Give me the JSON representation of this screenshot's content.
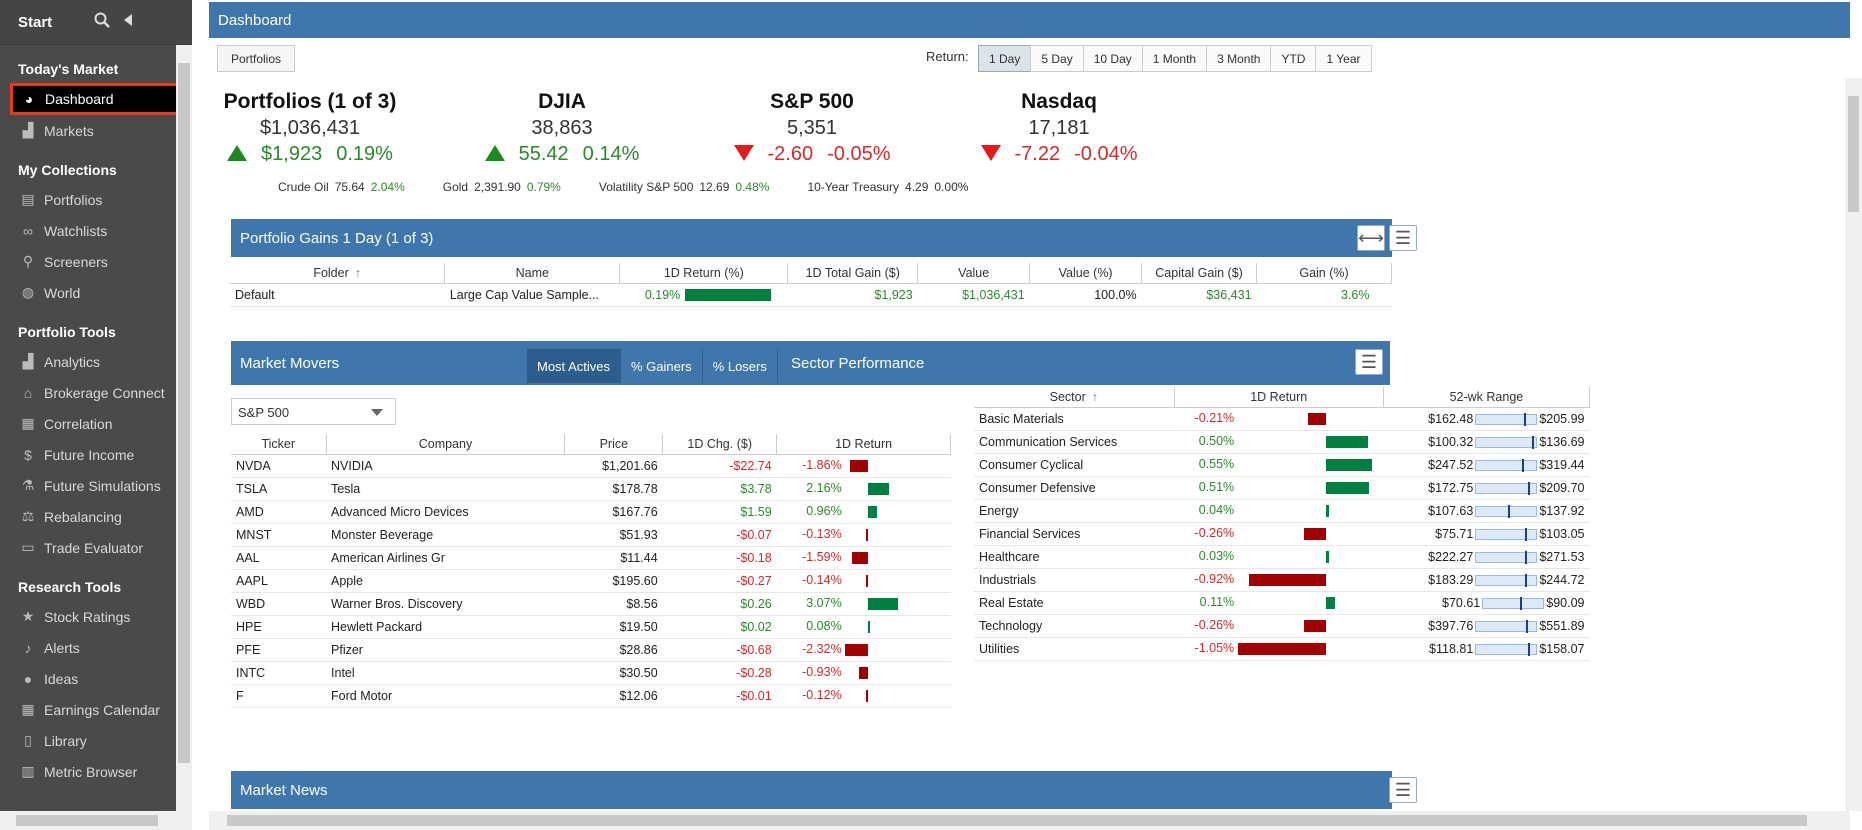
{
  "sidebar": {
    "title": "Start",
    "sections": [
      {
        "title": "Today's Market",
        "items": [
          {
            "label": "Dashboard",
            "icon": "dashboard-icon",
            "glyph": "◕",
            "active": true
          },
          {
            "label": "Markets",
            "icon": "chart-icon",
            "glyph": "▟",
            "active": false
          }
        ]
      },
      {
        "title": "My Collections",
        "items": [
          {
            "label": "Portfolios",
            "icon": "briefcase-icon",
            "glyph": "▤",
            "active": false
          },
          {
            "label": "Watchlists",
            "icon": "binoculars-icon",
            "glyph": "∞",
            "active": false
          },
          {
            "label": "Screeners",
            "icon": "search-icon",
            "glyph": "⚲",
            "active": false
          },
          {
            "label": "World",
            "icon": "globe-icon",
            "glyph": "◍",
            "active": false
          }
        ]
      },
      {
        "title": "Portfolio Tools",
        "items": [
          {
            "label": "Analytics",
            "icon": "bar-chart-icon",
            "glyph": "▟",
            "active": false
          },
          {
            "label": "Brokerage Connect",
            "icon": "bank-icon",
            "glyph": "⌂",
            "active": false
          },
          {
            "label": "Correlation",
            "icon": "grid-icon",
            "glyph": "▦",
            "active": false
          },
          {
            "label": "Future Income",
            "icon": "dollar-icon",
            "glyph": "$",
            "active": false
          },
          {
            "label": "Future Simulations",
            "icon": "flask-icon",
            "glyph": "⚗",
            "active": false
          },
          {
            "label": "Rebalancing",
            "icon": "scale-icon",
            "glyph": "⚖",
            "active": false
          },
          {
            "label": "Trade Evaluator",
            "icon": "toolbox-icon",
            "glyph": "▭",
            "active": false
          }
        ]
      },
      {
        "title": "Research Tools",
        "items": [
          {
            "label": "Stock Ratings",
            "icon": "star-icon",
            "glyph": "★",
            "active": false
          },
          {
            "label": "Alerts",
            "icon": "bell-icon",
            "glyph": "♪",
            "active": false
          },
          {
            "label": "Ideas",
            "icon": "lightbulb-icon",
            "glyph": "●",
            "active": false
          },
          {
            "label": "Earnings Calendar",
            "icon": "calendar-icon",
            "glyph": "▦",
            "active": false
          },
          {
            "label": "Library",
            "icon": "book-icon",
            "glyph": "▯",
            "active": false
          },
          {
            "label": "Metric Browser",
            "icon": "table-icon",
            "glyph": "▥",
            "active": false
          }
        ]
      }
    ]
  },
  "header": {
    "title": "Dashboard"
  },
  "toolbar": {
    "portfolios_label": "Portfolios",
    "return_label": "Return:",
    "periods": [
      "1 Day",
      "5 Day",
      "10 Day",
      "1 Month",
      "3 Month",
      "YTD",
      "1 Year"
    ],
    "selected_period": "1 Day"
  },
  "indices": [
    {
      "name": "Portfolios (1 of 3)",
      "value": "$1,036,431",
      "change": "$1,923",
      "pct": "0.19%",
      "dir": "up"
    },
    {
      "name": "DJIA",
      "value": "38,863",
      "change": "55.42",
      "pct": "0.14%",
      "dir": "up"
    },
    {
      "name": "S&P 500",
      "value": "5,351",
      "change": "-2.60",
      "pct": "-0.05%",
      "dir": "down"
    },
    {
      "name": "Nasdaq",
      "value": "17,181",
      "change": "-7.22",
      "pct": "-0.04%",
      "dir": "down"
    }
  ],
  "mini_quotes": [
    {
      "name": "Crude Oil",
      "value": "75.64",
      "pct": "2.04%",
      "dir": "up"
    },
    {
      "name": "Gold",
      "value": "2,391.90",
      "pct": "0.79%",
      "dir": "up"
    },
    {
      "name": "Volatility S&P 500",
      "value": "12.69",
      "pct": "0.48%",
      "dir": "up"
    },
    {
      "name": "10-Year Treasury",
      "value": "4.29",
      "pct": "0.00%",
      "dir": "flat"
    }
  ],
  "gains": {
    "title": "Portfolio Gains 1 Day (1 of 3)",
    "columns": [
      "Folder",
      "Name",
      "1D Return (%)",
      "1D Total Gain ($)",
      "Value",
      "Value (%)",
      "Capital Gain ($)",
      "Gain (%)"
    ],
    "rows": [
      {
        "folder": "Default",
        "name": "Large Cap Value Sample...",
        "ret": "0.19%",
        "ret_fraction": 1.0,
        "gain": "$1,923",
        "value": "$1,036,431",
        "value_pct": "100.0%",
        "cap_gain": "$36,431",
        "gain_pct": "3.6%"
      }
    ]
  },
  "movers": {
    "title": "Market Movers",
    "tabs": [
      "Most Actives",
      "% Gainers",
      "% Losers"
    ],
    "active_tab": "Most Actives",
    "index_select": "S&P 500",
    "columns": [
      "Ticker",
      "Company",
      "Price",
      "1D Chg. ($)",
      "1D Return"
    ],
    "rows": [
      {
        "ticker": "NVDA",
        "company": "NVIDIA",
        "price": "$1,201.66",
        "chg": "-$22.74",
        "ret": "-1.86%",
        "ret_value": -1.86
      },
      {
        "ticker": "TSLA",
        "company": "Tesla",
        "price": "$178.78",
        "chg": "$3.78",
        "ret": "2.16%",
        "ret_value": 2.16
      },
      {
        "ticker": "AMD",
        "company": "Advanced Micro Devices",
        "price": "$167.76",
        "chg": "$1.59",
        "ret": "0.96%",
        "ret_value": 0.96
      },
      {
        "ticker": "MNST",
        "company": "Monster Beverage",
        "price": "$51.93",
        "chg": "-$0.07",
        "ret": "-0.13%",
        "ret_value": -0.13
      },
      {
        "ticker": "AAL",
        "company": "American Airlines Gr",
        "price": "$11.44",
        "chg": "-$0.18",
        "ret": "-1.59%",
        "ret_value": -1.59
      },
      {
        "ticker": "AAPL",
        "company": "Apple",
        "price": "$195.60",
        "chg": "-$0.27",
        "ret": "-0.14%",
        "ret_value": -0.14
      },
      {
        "ticker": "WBD",
        "company": "Warner Bros. Discovery",
        "price": "$8.56",
        "chg": "$0.26",
        "ret": "3.07%",
        "ret_value": 3.07
      },
      {
        "ticker": "HPE",
        "company": "Hewlett Packard",
        "price": "$19.50",
        "chg": "$0.02",
        "ret": "0.08%",
        "ret_value": 0.08
      },
      {
        "ticker": "PFE",
        "company": "Pfizer",
        "price": "$28.86",
        "chg": "-$0.68",
        "ret": "-2.32%",
        "ret_value": -2.32
      },
      {
        "ticker": "INTC",
        "company": "Intel",
        "price": "$30.50",
        "chg": "-$0.28",
        "ret": "-0.93%",
        "ret_value": -0.93
      },
      {
        "ticker": "F",
        "company": "Ford Motor",
        "price": "$12.06",
        "chg": "-$0.01",
        "ret": "-0.12%",
        "ret_value": -0.12
      }
    ]
  },
  "sectors": {
    "title": "Sector Performance",
    "columns": [
      "Sector",
      "1D Return",
      "52-wk Range"
    ],
    "rows": [
      {
        "sector": "Basic Materials",
        "ret": "-0.21%",
        "ret_value": -0.21,
        "low": "$162.48",
        "high": "$205.99",
        "pos": 0.82
      },
      {
        "sector": "Communication Services",
        "ret": "0.50%",
        "ret_value": 0.5,
        "low": "$100.32",
        "high": "$136.69",
        "pos": 0.96
      },
      {
        "sector": "Consumer Cyclical",
        "ret": "0.55%",
        "ret_value": 0.55,
        "low": "$247.52",
        "high": "$319.44",
        "pos": 0.8
      },
      {
        "sector": "Consumer Defensive",
        "ret": "0.51%",
        "ret_value": 0.51,
        "low": "$172.75",
        "high": "$209.70",
        "pos": 0.9
      },
      {
        "sector": "Energy",
        "ret": "0.04%",
        "ret_value": 0.04,
        "low": "$107.63",
        "high": "$137.92",
        "pos": 0.55
      },
      {
        "sector": "Financial Services",
        "ret": "-0.26%",
        "ret_value": -0.26,
        "low": "$75.71",
        "high": "$103.05",
        "pos": 0.85
      },
      {
        "sector": "Healthcare",
        "ret": "0.03%",
        "ret_value": 0.03,
        "low": "$222.27",
        "high": "$271.53",
        "pos": 0.84
      },
      {
        "sector": "Industrials",
        "ret": "-0.92%",
        "ret_value": -0.92,
        "low": "$183.29",
        "high": "$244.72",
        "pos": 0.84
      },
      {
        "sector": "Real Estate",
        "ret": "0.11%",
        "ret_value": 0.11,
        "low": "$70.61",
        "high": "$90.09",
        "pos": 0.63
      },
      {
        "sector": "Technology",
        "ret": "-0.26%",
        "ret_value": -0.26,
        "low": "$397.76",
        "high": "$551.89",
        "pos": 0.86
      },
      {
        "sector": "Utilities",
        "ret": "-1.05%",
        "ret_value": -1.05,
        "low": "$118.81",
        "high": "$158.07",
        "pos": 0.9
      }
    ]
  },
  "news": {
    "title": "Market News"
  },
  "colors": {
    "accent": "#3f77ad",
    "up": "#2a8a2a",
    "down": "#d42a2a",
    "bar_up": "#008040",
    "bar_down": "#a00000",
    "active_outline": "#e8391b"
  }
}
